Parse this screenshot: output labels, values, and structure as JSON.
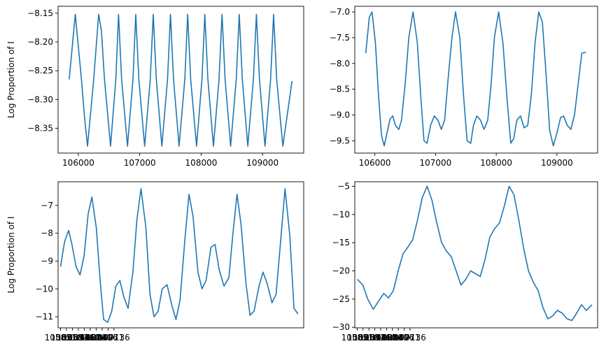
{
  "figure": {
    "line_color": "#1f77b4"
  },
  "chart_data": [
    {
      "type": "line",
      "title": "",
      "xlabel": "",
      "ylabel": "Log Proportion of I",
      "xlim": [
        105670,
        109670
      ],
      "ylim": [
        -8.393,
        -8.138
      ],
      "x_ticks": [
        106000,
        107000,
        108000,
        109000
      ],
      "x_tick_labels": [
        "106000",
        "107000",
        "108000",
        "109000"
      ],
      "y_ticks": [
        -8.35,
        -8.3,
        -8.25,
        -8.2,
        -8.15
      ],
      "y_tick_labels": [
        "−8.35",
        "−8.30",
        "−8.25",
        "−8.20",
        "−8.15"
      ],
      "grid": false,
      "series": [
        {
          "name": "series",
          "x": [
            105851,
            105950,
            106051,
            106100,
            106150,
            106250,
            106331,
            106375,
            106425,
            106525,
            106610,
            106655,
            106705,
            106800,
            106889,
            106935,
            106985,
            107080,
            107171,
            107220,
            107270,
            107360,
            107452,
            107500,
            107550,
            107640,
            107734,
            107780,
            107830,
            107925,
            108013,
            108060,
            108110,
            108200,
            108291,
            108340,
            108390,
            108480,
            108571,
            108620,
            108670,
            108760,
            108851,
            108900,
            108950,
            109040,
            109131,
            109180,
            109230,
            109330,
            109480
          ],
          "values": [
            -8.265,
            -8.152,
            -8.265,
            -8.33,
            -8.381,
            -8.265,
            -8.152,
            -8.18,
            -8.265,
            -8.381,
            -8.265,
            -8.152,
            -8.265,
            -8.381,
            -8.265,
            -8.152,
            -8.265,
            -8.381,
            -8.265,
            -8.152,
            -8.265,
            -8.381,
            -8.265,
            -8.152,
            -8.265,
            -8.381,
            -8.265,
            -8.152,
            -8.265,
            -8.381,
            -8.265,
            -8.152,
            -8.265,
            -8.381,
            -8.265,
            -8.152,
            -8.265,
            -8.381,
            -8.265,
            -8.152,
            -8.265,
            -8.381,
            -8.265,
            -8.152,
            -8.265,
            -8.381,
            -8.265,
            -8.152,
            -8.265,
            -8.381,
            -8.268
          ]
        }
      ]
    },
    {
      "type": "line",
      "title": "",
      "xlabel": "",
      "ylabel": "",
      "xlim": [
        105670,
        109670
      ],
      "ylim": [
        -9.74,
        -6.89
      ],
      "x_ticks": [
        106000,
        107000,
        108000,
        109000
      ],
      "x_tick_labels": [
        "106000",
        "107000",
        "108000",
        "109000"
      ],
      "y_ticks": [
        -9.5,
        -9.0,
        -8.5,
        -8.0,
        -7.5,
        -7.0
      ],
      "y_tick_labels": [
        "−9.5",
        "−9.0",
        "−8.5",
        "−8.0",
        "−7.5",
        "−7.0"
      ],
      "grid": false,
      "series": [
        {
          "name": "series",
          "x": [
            105851,
            105910,
            105955,
            106010,
            106060,
            106110,
            106155,
            106200,
            106250,
            106295,
            106340,
            106395,
            106440,
            106500,
            106560,
            106630,
            106700,
            106760,
            106810,
            106860,
            106920,
            106980,
            107040,
            107095,
            107150,
            107200,
            107270,
            107330,
            107400,
            107460,
            107520,
            107580,
            107625,
            107680,
            107740,
            107800,
            107860,
            107915,
            107970,
            108040,
            108110,
            108180,
            108240,
            108290,
            108340,
            108400,
            108460,
            108520,
            108580,
            108640,
            108700,
            108760,
            108820,
            108880,
            108940,
            109000,
            109060,
            109110,
            109170,
            109230,
            109290,
            109350,
            109410,
            109480
          ],
          "values": [
            -7.8,
            -7.1,
            -7.0,
            -7.6,
            -8.6,
            -9.4,
            -9.6,
            -9.35,
            -9.08,
            -9.02,
            -9.2,
            -9.28,
            -9.1,
            -8.4,
            -7.5,
            -7.0,
            -7.6,
            -8.7,
            -9.5,
            -9.55,
            -9.2,
            -9.02,
            -9.1,
            -9.28,
            -9.1,
            -8.4,
            -7.5,
            -7.0,
            -7.5,
            -8.6,
            -9.5,
            -9.55,
            -9.2,
            -9.02,
            -9.1,
            -9.28,
            -9.1,
            -8.4,
            -7.5,
            -7.0,
            -7.6,
            -8.7,
            -9.55,
            -9.45,
            -9.1,
            -9.02,
            -9.25,
            -9.2,
            -8.6,
            -7.6,
            -7.0,
            -7.2,
            -8.2,
            -9.3,
            -9.6,
            -9.35,
            -9.05,
            -9.02,
            -9.2,
            -9.28,
            -9.0,
            -8.4,
            -7.8,
            -7.78
          ]
        }
      ]
    },
    {
      "type": "line",
      "title": "",
      "xlabel": "",
      "ylabel": "Log Proportion of I",
      "xlim": [
        105700,
        120800
      ],
      "ylim": [
        -11.4,
        -6.15
      ],
      "x_ticks": [
        105851,
        106210,
        106581,
        106946,
        107310,
        107676,
        108041,
        108406,
        108771,
        109136
      ],
      "x_tick_labels": [
        "105851",
        "106210",
        "106581",
        "106946",
        "107310",
        "107676",
        "108041",
        "108406",
        "108771",
        "109136"
      ],
      "y_ticks": [
        -11,
        -10,
        -9,
        -8,
        -7
      ],
      "y_tick_labels": [
        "−11",
        "−10",
        "−9",
        "−8",
        "−7"
      ],
      "grid": false,
      "series": [
        {
          "name": "series",
          "x": [
            105851,
            106100,
            106350,
            106550,
            106800,
            107050,
            107300,
            107550,
            107780,
            108050,
            108300,
            108500,
            108750,
            109000,
            109250,
            109500,
            109750,
            110000,
            110300,
            110550,
            110800,
            111100,
            111350,
            111600,
            111850,
            112100,
            112400,
            112700,
            112950,
            113200,
            113500,
            113750,
            114000,
            114300,
            114550,
            114800,
            115100,
            115350,
            115600,
            115900,
            116200,
            116450,
            116700,
            116950,
            117250,
            117500,
            117750,
            118050,
            118300,
            118550,
            118850,
            119100,
            119350,
            119650,
            119950,
            120200,
            120450
          ],
          "values": [
            -9.2,
            -8.3,
            -7.9,
            -8.4,
            -9.2,
            -9.5,
            -8.8,
            -7.3,
            -6.7,
            -7.8,
            -9.8,
            -11.1,
            -11.2,
            -10.8,
            -9.9,
            -9.7,
            -10.3,
            -10.7,
            -9.4,
            -7.5,
            -6.4,
            -7.8,
            -10.2,
            -11.0,
            -10.8,
            -10.0,
            -9.85,
            -10.6,
            -11.1,
            -10.4,
            -8.2,
            -6.6,
            -7.4,
            -9.4,
            -10.0,
            -9.7,
            -8.5,
            -8.4,
            -9.3,
            -9.9,
            -9.6,
            -8.0,
            -6.6,
            -7.7,
            -9.8,
            -10.95,
            -10.8,
            -9.9,
            -9.4,
            -9.8,
            -10.5,
            -10.2,
            -8.5,
            -6.4,
            -8.1,
            -10.7,
            -10.9
          ]
        }
      ]
    },
    {
      "type": "line",
      "title": "",
      "xlabel": "",
      "ylabel": "",
      "xlim": [
        105700,
        120800
      ],
      "ylim": [
        -30.1,
        -4.2
      ],
      "x_ticks": [
        105851,
        106210,
        106581,
        106946,
        107310,
        107676,
        108041,
        108406,
        108771,
        109136
      ],
      "x_tick_labels": [
        "105851",
        "106210",
        "106581",
        "106946",
        "107310",
        "107676",
        "108041",
        "108406",
        "108771",
        "109136"
      ],
      "y_ticks": [
        -30,
        -25,
        -20,
        -15,
        -10,
        -5
      ],
      "y_tick_labels": [
        "−30",
        "−25",
        "−20",
        "−15",
        "−10",
        "−5"
      ],
      "grid": false,
      "series": [
        {
          "name": "series",
          "x": [
            105851,
            106200,
            106500,
            106850,
            107150,
            107500,
            107800,
            108100,
            108400,
            108700,
            109000,
            109300,
            109600,
            109900,
            110200,
            110500,
            110800,
            111100,
            111400,
            111700,
            112000,
            112300,
            112600,
            112900,
            113200,
            113500,
            113800,
            114100,
            114400,
            114700,
            115000,
            115300,
            115600,
            115900,
            116200,
            116500,
            116800,
            117100,
            117400,
            117700,
            118000,
            118300,
            118600,
            118900,
            119200,
            119500,
            119800,
            120100,
            120450
          ],
          "values": [
            -21.5,
            -22.5,
            -25.0,
            -26.8,
            -25.5,
            -24.0,
            -24.8,
            -23.5,
            -20.0,
            -17.0,
            -15.8,
            -14.5,
            -11.0,
            -7.0,
            -5.0,
            -7.5,
            -11.5,
            -15.0,
            -16.5,
            -17.5,
            -20.0,
            -22.5,
            -21.5,
            -20.0,
            -20.5,
            -21.0,
            -18.0,
            -14.0,
            -12.5,
            -11.5,
            -8.5,
            -5.0,
            -6.5,
            -11.0,
            -16.0,
            -20.0,
            -22.0,
            -23.5,
            -26.5,
            -28.5,
            -28.0,
            -27.0,
            -27.5,
            -28.5,
            -28.8,
            -27.5,
            -26.0,
            -27.0,
            -26.0
          ]
        }
      ]
    }
  ]
}
